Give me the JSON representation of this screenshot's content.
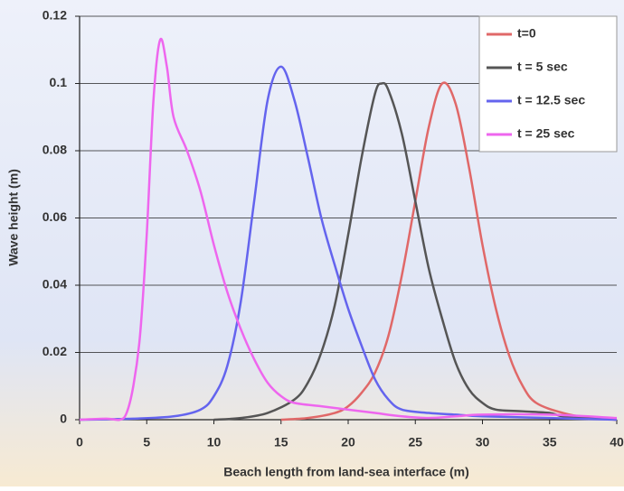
{
  "chart_data": {
    "type": "line",
    "x_label": "Beach length from land-sea interface (m)",
    "y_label": "Wave height (m)",
    "xlim": [
      0,
      40
    ],
    "xticks": [
      0,
      5,
      10,
      15,
      20,
      25,
      30,
      35,
      40
    ],
    "ylim": [
      0,
      0.12
    ],
    "yticks": [
      0,
      0.02,
      0.04,
      0.06,
      0.08,
      0.1,
      0.12
    ],
    "grid": true,
    "legend": "top-right",
    "series": [
      {
        "name": "t=0",
        "color": "#e06868",
        "x": [
          15,
          17,
          19,
          20,
          21,
          22,
          23,
          24,
          25,
          26,
          27,
          28,
          29,
          30,
          31,
          32,
          33,
          34,
          36,
          38,
          40
        ],
        "values": [
          0,
          0.0005,
          0.002,
          0.004,
          0.008,
          0.014,
          0.025,
          0.043,
          0.065,
          0.087,
          0.1,
          0.094,
          0.075,
          0.052,
          0.033,
          0.019,
          0.01,
          0.005,
          0.002,
          0.0005,
          0
        ]
      },
      {
        "name": "t = 5 sec",
        "color": "#555555",
        "x": [
          10,
          12,
          14,
          16,
          17,
          18,
          19,
          20,
          21,
          22,
          22.5,
          23,
          24,
          25,
          26,
          27,
          28,
          29,
          30,
          31,
          33,
          35,
          36,
          38,
          40
        ],
        "values": [
          0,
          0.0005,
          0.002,
          0.006,
          0.011,
          0.02,
          0.034,
          0.055,
          0.078,
          0.097,
          0.1,
          0.098,
          0.085,
          0.065,
          0.045,
          0.03,
          0.017,
          0.009,
          0.005,
          0.003,
          0.0025,
          0.002,
          0.001,
          0.0005,
          0
        ]
      },
      {
        "name": "t = 12.5 sec",
        "color": "#6464ee",
        "x": [
          0,
          4,
          7,
          9,
          10,
          11,
          12,
          13,
          14,
          15,
          16,
          17,
          18,
          19,
          20,
          21,
          22,
          23,
          24,
          26,
          28,
          30,
          35,
          40
        ],
        "values": [
          0,
          0.0003,
          0.001,
          0.003,
          0.007,
          0.016,
          0.035,
          0.065,
          0.095,
          0.105,
          0.095,
          0.078,
          0.06,
          0.046,
          0.033,
          0.022,
          0.012,
          0.006,
          0.003,
          0.002,
          0.0015,
          0.001,
          0.0005,
          0
        ]
      },
      {
        "name": "t = 25 sec",
        "color": "#ee66ee",
        "x": [
          0,
          2,
          3,
          3.5,
          4,
          4.5,
          5,
          5.5,
          6,
          6.5,
          7,
          8,
          9,
          10,
          11,
          12,
          13,
          14,
          15,
          16,
          18,
          20,
          22,
          24,
          26,
          28,
          30,
          35,
          40
        ],
        "values": [
          0,
          0.0003,
          0,
          0.002,
          0.01,
          0.025,
          0.055,
          0.095,
          0.113,
          0.105,
          0.09,
          0.08,
          0.068,
          0.052,
          0.038,
          0.027,
          0.018,
          0.011,
          0.007,
          0.005,
          0.004,
          0.003,
          0.002,
          0.001,
          0.0005,
          0.001,
          0.0015,
          0.0015,
          0.0005
        ]
      }
    ]
  }
}
